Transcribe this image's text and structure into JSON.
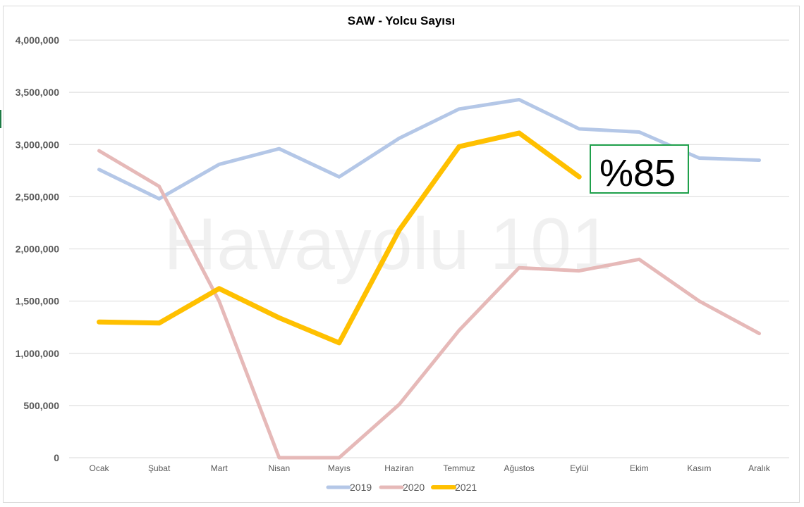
{
  "chart_data": {
    "type": "line",
    "title": "SAW - Yolcu Sayısı",
    "categories": [
      "Ocak",
      "Şubat",
      "Mart",
      "Nisan",
      "Mayıs",
      "Haziran",
      "Temmuz",
      "Ağustos",
      "Eylül",
      "Ekim",
      "Kasım",
      "Aralık"
    ],
    "yticks": [
      "0",
      "500,000",
      "1,000,000",
      "1,500,000",
      "2,000,000",
      "2,500,000",
      "3,000,000",
      "3,500,000",
      "4,000,000"
    ],
    "ylim": [
      0,
      4000000
    ],
    "grid": true,
    "legend_position": "bottom",
    "series": [
      {
        "name": "2019",
        "color": "#b4c7e7",
        "values": [
          2760000,
          2480000,
          2810000,
          2960000,
          2690000,
          3060000,
          3340000,
          3430000,
          3150000,
          3120000,
          2870000,
          2850000
        ]
      },
      {
        "name": "2020",
        "color": "#e6b9b8",
        "values": [
          2940000,
          2600000,
          1500000,
          0,
          0,
          510000,
          1220000,
          1820000,
          1790000,
          1900000,
          1500000,
          1190000
        ]
      },
      {
        "name": "2021",
        "color": "#ffc000",
        "values": [
          1300000,
          1290000,
          1620000,
          1340000,
          1100000,
          2180000,
          2980000,
          3110000,
          2690000,
          null,
          null,
          null
        ]
      }
    ],
    "annotations": [
      {
        "text": "%85",
        "border_color": "#1fa04b"
      }
    ],
    "watermark": "Havayolu 101"
  }
}
